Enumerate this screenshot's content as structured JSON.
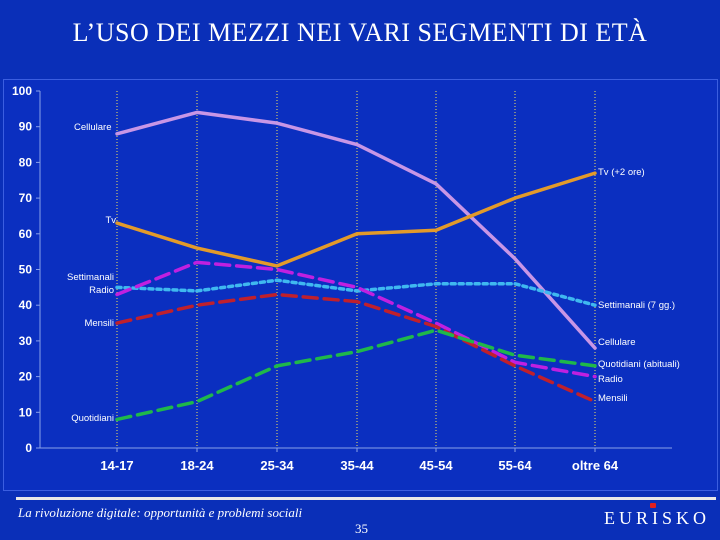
{
  "slide": {
    "title": "L’USO DEI MEZZI NEI VARI SEGMENTI DI ETÀ",
    "footer": "La rivoluzione digitale: opportunità e problemi sociali",
    "page_number": "35",
    "brand": "EURISKO"
  },
  "chart_data": {
    "type": "line",
    "categories": [
      "14-17",
      "18-24",
      "25-34",
      "35-44",
      "45-54",
      "55-64",
      "oltre 64"
    ],
    "ylim": [
      0,
      100
    ],
    "yticks": [
      0,
      10,
      20,
      30,
      40,
      50,
      60,
      70,
      80,
      90,
      100
    ],
    "grid": "vertical dotted lines at categories",
    "series": [
      {
        "name": "Cellulare",
        "values": [
          88,
          94,
          91,
          85,
          74,
          53,
          28
        ],
        "color": "#c896e6",
        "style": "solid",
        "left_label": "Cellulare",
        "right_label": "Cellulare"
      },
      {
        "name": "Tv (+2 ore)",
        "values": [
          63,
          56,
          51,
          60,
          61,
          70,
          77
        ],
        "color": "#e39a2a",
        "style": "solid",
        "left_label": "Tv",
        "right_label": "Tv (+2 ore)"
      },
      {
        "name": "Settimanali (7 gg.)",
        "values": [
          45,
          44,
          47,
          44,
          46,
          46,
          40
        ],
        "color": "#3fb8f0",
        "style": "dotted",
        "left_label": "Settimanali",
        "right_label": "Settimanali (7 gg.)"
      },
      {
        "name": "Radio",
        "values": [
          43,
          52,
          50,
          45,
          35,
          24,
          20
        ],
        "color": "#c020e0",
        "style": "dashed",
        "left_label": "Radio",
        "right_label": "Radio"
      },
      {
        "name": "Mensili",
        "values": [
          35,
          40,
          43,
          41,
          34,
          23,
          13
        ],
        "color": "#c0202c",
        "style": "dashed",
        "left_label": "Mensili",
        "right_label": "Mensili"
      },
      {
        "name": "Quotidiani (abituali)",
        "values": [
          8,
          13,
          23,
          27,
          33,
          26,
          23
        ],
        "color": "#1fb84a",
        "style": "dashed",
        "left_label": "Quotidiani",
        "right_label": "Quotidiani (abituali)"
      }
    ]
  }
}
